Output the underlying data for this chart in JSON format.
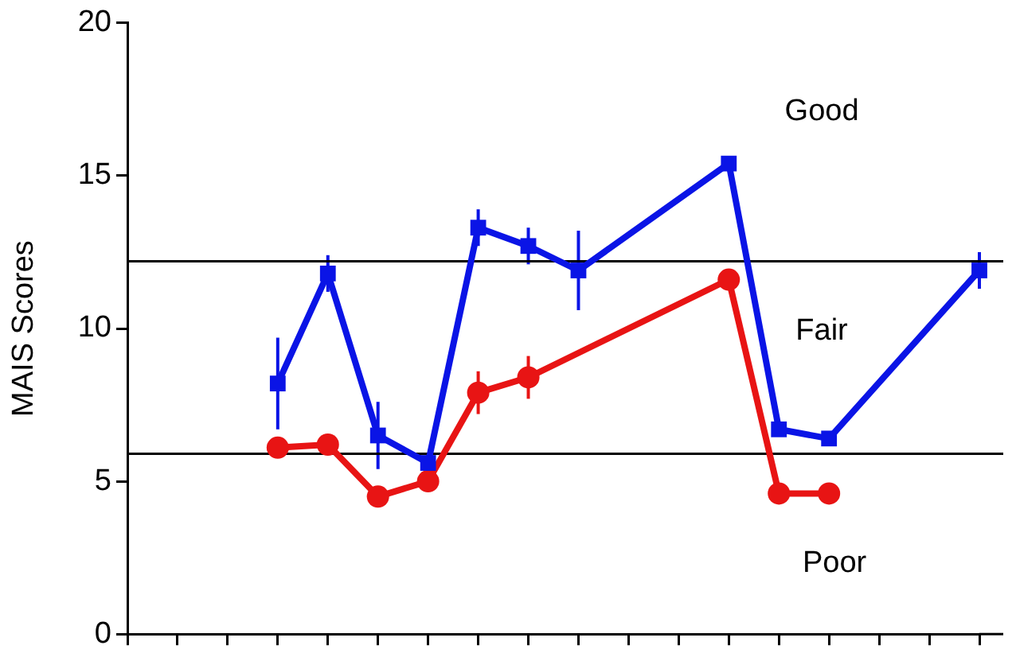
{
  "chart_data": {
    "type": "line",
    "ylabel": "MAIS Scores",
    "categories": [
      null,
      null,
      null,
      null,
      null,
      null,
      null,
      null,
      null,
      null,
      null,
      null,
      null,
      null,
      null,
      null,
      null,
      null
    ],
    "series": [
      {
        "color": "#0a14e6",
        "marker": "square",
        "values": [
          null,
          null,
          null,
          8.2,
          11.8,
          6.5,
          5.6,
          13.3,
          12.7,
          11.9,
          null,
          null,
          15.4,
          6.7,
          6.4,
          null,
          null,
          11.9
        ],
        "errors": [
          null,
          null,
          null,
          1.5,
          0.6,
          1.1,
          0.3,
          0.6,
          0.6,
          1.3,
          null,
          null,
          null,
          null,
          null,
          null,
          null,
          0.6
        ]
      },
      {
        "color": "#e81414",
        "marker": "circle",
        "values": [
          null,
          null,
          null,
          6.1,
          6.2,
          4.5,
          5.0,
          7.9,
          8.4,
          null,
          null,
          null,
          11.6,
          4.6,
          4.6,
          null,
          null,
          null
        ],
        "errors": [
          null,
          null,
          null,
          null,
          null,
          null,
          0.3,
          0.7,
          0.7,
          null,
          null,
          null,
          null,
          0.3,
          null,
          null,
          null,
          null
        ]
      }
    ],
    "ylim": [
      0,
      20
    ],
    "yticks": [
      0,
      5,
      10,
      15,
      20
    ],
    "grid": false,
    "legend": false,
    "tick_labels": "y",
    "ref_lines": [
      {
        "axis": "y",
        "value": 12.2,
        "color": "#000000"
      },
      {
        "axis": "y",
        "value": 5.9,
        "color": "#000000"
      }
    ],
    "annotations": [
      "Good",
      "Fair",
      "Poor"
    ]
  }
}
